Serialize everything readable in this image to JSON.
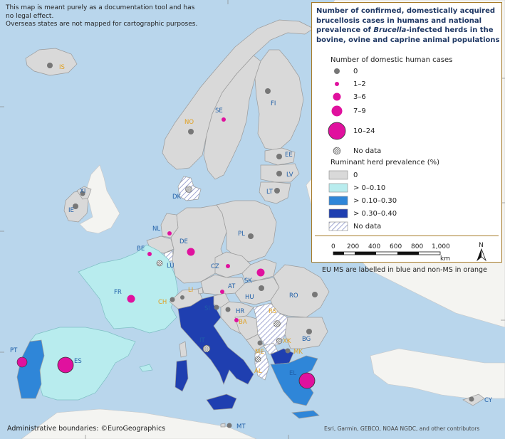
{
  "notice": {
    "line1": "This map is meant purely as a documentation tool and has",
    "line2": "no legal effect.",
    "line3": "Overseas states are not mapped for cartographic purposes."
  },
  "legend": {
    "title_part1": "Number of confirmed, domestically acquired brucellosis cases in humans and national prevalence of ",
    "title_italic": "Brucella",
    "title_part2": "-infected herds in the bovine, ovine and caprine animal populations",
    "cases_heading": "Number of domestic human cases",
    "case_items": [
      {
        "label": "0",
        "kind": "grey"
      },
      {
        "label": "1–2",
        "kind": "magenta"
      },
      {
        "label": "3–6",
        "kind": "magenta"
      },
      {
        "label": "7–9",
        "kind": "magenta"
      },
      {
        "label": "10–24",
        "kind": "magenta"
      },
      {
        "label": "No data",
        "kind": "hatch"
      }
    ],
    "prev_heading": "Ruminant herd prevalence (%)",
    "prev_items": [
      {
        "label": "0",
        "color": "#d9d9d9"
      },
      {
        "label": "> 0–0.10",
        "color": "#b8ecee"
      },
      {
        "label": "> 0.10–0.30",
        "color": "#2f86d8"
      },
      {
        "label": "> 0.30–0.40",
        "color": "#1f3fb0"
      },
      {
        "label": "No data",
        "color": "hatch"
      }
    ],
    "scale": {
      "ticks": [
        "0",
        "200",
        "400",
        "600",
        "800",
        "1,000"
      ],
      "unit": "km"
    },
    "north": "N"
  },
  "ms_note": "EU MS are labelled in blue and non-MS in orange",
  "attribution_left": "Administrative boundaries: ©EuroGeographics",
  "attribution_right": "Esri, Garmin, GEBCO, NOAA NGDC, and other contributors",
  "colors": {
    "sea": "#b9d6ec",
    "grey": "#d9d9d9",
    "light_cyan": "#b8ecee",
    "mid_blue": "#2f86d8",
    "dark_blue": "#1f3fb0",
    "magenta": "#e0119e",
    "eu_label": "#1f5fa8",
    "non_ms_label": "#e0a020"
  },
  "countries": [
    {
      "code": "IS",
      "eu": false,
      "cases": "0"
    },
    {
      "code": "NO",
      "eu": false,
      "cases": "0"
    },
    {
      "code": "SE",
      "eu": true,
      "cases": "1–2"
    },
    {
      "code": "FI",
      "eu": true,
      "cases": "0"
    },
    {
      "code": "EE",
      "eu": true,
      "cases": "0"
    },
    {
      "code": "LV",
      "eu": true,
      "cases": "0"
    },
    {
      "code": "LT",
      "eu": true,
      "cases": "0"
    },
    {
      "code": "DK",
      "eu": true,
      "cases": "No data"
    },
    {
      "code": "XI",
      "eu": false,
      "cases": "0"
    },
    {
      "code": "IE",
      "eu": true,
      "cases": "0"
    },
    {
      "code": "NL",
      "eu": true,
      "cases": "1–2"
    },
    {
      "code": "BE",
      "eu": true,
      "cases": "1–2"
    },
    {
      "code": "LU",
      "eu": true,
      "cases": "No data"
    },
    {
      "code": "DE",
      "eu": true,
      "cases": "3–6"
    },
    {
      "code": "PL",
      "eu": true,
      "cases": "0"
    },
    {
      "code": "CZ",
      "eu": true,
      "cases": "1–2"
    },
    {
      "code": "SK",
      "eu": true,
      "cases": "3–6"
    },
    {
      "code": "AT",
      "eu": true,
      "cases": "1–2"
    },
    {
      "code": "HU",
      "eu": true,
      "cases": "0"
    },
    {
      "code": "RO",
      "eu": true,
      "cases": "0"
    },
    {
      "code": "FR",
      "eu": true,
      "cases": "3–6"
    },
    {
      "code": "CH",
      "eu": false,
      "cases": "0"
    },
    {
      "code": "LI",
      "eu": false,
      "cases": "0"
    },
    {
      "code": "SI",
      "eu": true,
      "cases": "0"
    },
    {
      "code": "HR",
      "eu": true,
      "cases": "0"
    },
    {
      "code": "BA",
      "eu": false,
      "cases": "1–2"
    },
    {
      "code": "RS",
      "eu": false,
      "cases": "No data"
    },
    {
      "code": "IT",
      "eu": true,
      "cases": "No data"
    },
    {
      "code": "ME",
      "eu": false,
      "cases": "0"
    },
    {
      "code": "XK",
      "eu": false,
      "cases": "No data"
    },
    {
      "code": "BG",
      "eu": true,
      "cases": "0"
    },
    {
      "code": "MK",
      "eu": false,
      "cases": "0"
    },
    {
      "code": "AL",
      "eu": false,
      "cases": "No data"
    },
    {
      "code": "EL",
      "eu": true,
      "cases": "10–24"
    },
    {
      "code": "PT",
      "eu": true,
      "cases": "7–9"
    },
    {
      "code": "ES",
      "eu": true,
      "cases": "10–24"
    },
    {
      "code": "MT",
      "eu": true,
      "cases": "0"
    },
    {
      "code": "CY",
      "eu": true,
      "cases": "0"
    }
  ]
}
